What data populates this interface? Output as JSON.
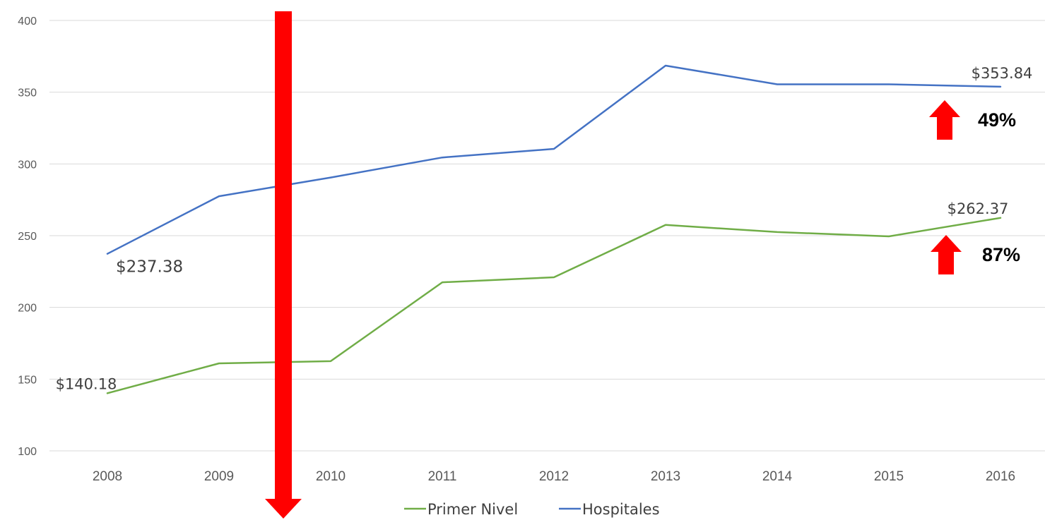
{
  "chart_data": {
    "type": "line",
    "title": "",
    "xlabel": "",
    "ylabel": "",
    "categories": [
      "2008",
      "2009",
      "2010",
      "2011",
      "2012",
      "2013",
      "2014",
      "2015",
      "2016"
    ],
    "ylim": [
      100,
      400
    ],
    "yticks": [
      "100",
      "150",
      "200",
      "250",
      "300",
      "350",
      "400"
    ],
    "grid": "horizontal",
    "legend_position": "bottom",
    "series": [
      {
        "name": "Primer Nivel",
        "color": "#70AD47",
        "values": [
          140.18,
          161,
          162.5,
          217.5,
          221,
          257.5,
          252.5,
          249.5,
          262.37
        ]
      },
      {
        "name": "Hospitales",
        "color": "#4472C4",
        "values": [
          237.38,
          277.5,
          290.5,
          304.5,
          310.5,
          368.5,
          355.5,
          355.5,
          353.84
        ]
      }
    ],
    "annotations": {
      "hosp_start": "$237.38",
      "hosp_end": "$353.84",
      "pn_start": "$140.18",
      "pn_end": "$262.37",
      "hosp_pct": "49%",
      "pn_pct": "87%"
    },
    "arrow_color": "#FF0000"
  }
}
